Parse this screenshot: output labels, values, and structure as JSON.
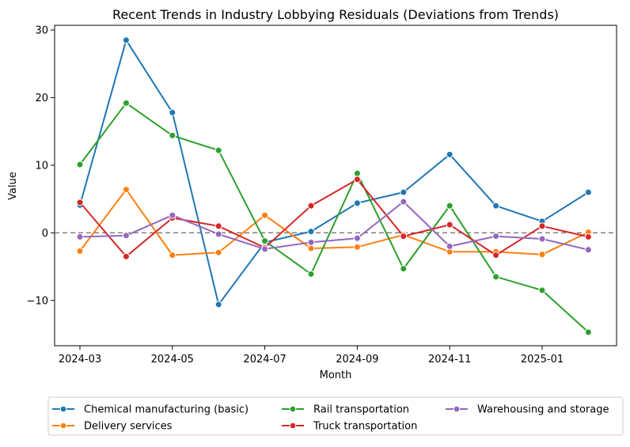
{
  "chart_data": {
    "type": "line",
    "title": "Recent Trends in Industry Lobbying Residuals (Deviations from Trends)",
    "xlabel": "Month",
    "ylabel": "Value",
    "x": [
      "2024-03",
      "2024-04",
      "2024-05",
      "2024-06",
      "2024-07",
      "2024-08",
      "2024-09",
      "2024-10",
      "2024-11",
      "2024-12",
      "2025-01",
      "2025-02"
    ],
    "x_ticks": [
      "2024-03",
      "2024-05",
      "2024-07",
      "2024-09",
      "2024-11",
      "2025-01"
    ],
    "y_ticks": [
      -10,
      0,
      10,
      20,
      30
    ],
    "y_tick_labels": [
      "−10",
      "0",
      "10",
      "20",
      "30"
    ],
    "ylim": [
      -16.7,
      30.7
    ],
    "reference_line": 0,
    "legend_position": "below chart",
    "series": [
      {
        "name": "Chemical manufacturing (basic)",
        "color": "#1f77b4",
        "values": [
          4.1,
          28.5,
          17.8,
          -10.6,
          -1.4,
          0.2,
          4.4,
          6.0,
          11.6,
          4.0,
          1.7,
          6.0
        ]
      },
      {
        "name": "Delivery services",
        "color": "#ff7f0e",
        "values": [
          -2.7,
          6.4,
          -3.3,
          -2.9,
          2.6,
          -2.3,
          -2.1,
          -0.3,
          -2.8,
          -2.8,
          -3.2,
          0.1
        ]
      },
      {
        "name": "Rail transportation",
        "color": "#2ca02c",
        "values": [
          10.1,
          19.2,
          14.4,
          12.2,
          -1.2,
          -6.1,
          8.8,
          -5.3,
          4.0,
          -6.5,
          -8.5,
          -14.7
        ]
      },
      {
        "name": "Truck transportation",
        "color": "#d62728",
        "values": [
          4.5,
          -3.5,
          2.2,
          1.0,
          -2.2,
          4.0,
          7.9,
          -0.5,
          1.2,
          -3.3,
          1.0,
          -0.6
        ]
      },
      {
        "name": "Warehousing and storage",
        "color": "#9467bd",
        "values": [
          -0.6,
          -0.4,
          2.6,
          -0.2,
          -2.4,
          -1.4,
          -0.8,
          4.6,
          -2.0,
          -0.5,
          -0.9,
          -2.5
        ]
      }
    ]
  }
}
